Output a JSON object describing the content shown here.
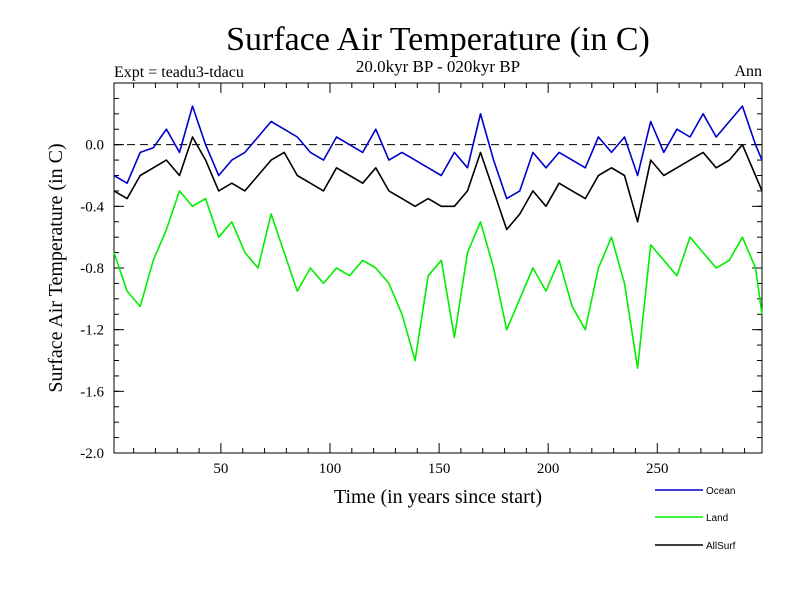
{
  "chart_data": {
    "type": "line",
    "title": "Surface Air Temperature (in C)",
    "subtitle": "20.0kyr BP - 020kyr BP",
    "experiment_label": "Expt = teadu3-tdacu",
    "season_label": "Ann",
    "xlabel": "Time (in years since start)",
    "ylabel": "Surface Air Temperature (in C)",
    "xlim": [
      1,
      298
    ],
    "ylim": [
      -2.0,
      0.4
    ],
    "xticks": [
      50,
      100,
      150,
      200,
      250
    ],
    "xtick_labels": [
      "50",
      "100",
      "150",
      "200",
      "250"
    ],
    "yticks": [
      -2.0,
      -1.6,
      -1.2,
      -0.8,
      -0.4,
      0.0
    ],
    "ytick_labels": [
      "-2.0",
      "-1.6",
      "-1.2",
      "-0.8",
      "-0.4",
      "0.0"
    ],
    "reference_line": 0.0,
    "legend_position": "bottom-right, below plot",
    "x": [
      1,
      7,
      13,
      19,
      25,
      31,
      37,
      43,
      49,
      55,
      61,
      67,
      73,
      79,
      85,
      91,
      97,
      103,
      109,
      115,
      121,
      127,
      133,
      139,
      145,
      151,
      157,
      163,
      169,
      175,
      181,
      187,
      193,
      199,
      205,
      211,
      217,
      223,
      229,
      235,
      241,
      247,
      253,
      259,
      265,
      271,
      277,
      283,
      289,
      295,
      298
    ],
    "series": [
      {
        "name": "Ocean",
        "color": "#0000cc",
        "values": [
          -0.2,
          -0.25,
          -0.05,
          -0.02,
          0.1,
          -0.05,
          0.25,
          0.0,
          -0.2,
          -0.1,
          -0.05,
          0.05,
          0.15,
          0.1,
          0.05,
          -0.05,
          -0.1,
          0.05,
          0.0,
          -0.05,
          0.1,
          -0.1,
          -0.05,
          -0.1,
          -0.15,
          -0.2,
          -0.05,
          -0.15,
          0.2,
          -0.1,
          -0.35,
          -0.3,
          -0.05,
          -0.15,
          -0.05,
          -0.1,
          -0.15,
          0.05,
          -0.05,
          0.05,
          -0.2,
          0.15,
          -0.05,
          0.1,
          0.05,
          0.2,
          0.05,
          0.15,
          0.25,
          0.0,
          -0.1
        ]
      },
      {
        "name": "Land",
        "color": "#00ee00",
        "values": [
          -0.7,
          -0.95,
          -1.05,
          -0.75,
          -0.55,
          -0.3,
          -0.4,
          -0.35,
          -0.6,
          -0.5,
          -0.7,
          -0.8,
          -0.45,
          -0.7,
          -0.95,
          -0.8,
          -0.9,
          -0.8,
          -0.85,
          -0.75,
          -0.8,
          -0.9,
          -1.1,
          -1.4,
          -0.85,
          -0.75,
          -1.25,
          -0.7,
          -0.5,
          -0.8,
          -1.2,
          -1.0,
          -0.8,
          -0.95,
          -0.75,
          -1.05,
          -1.2,
          -0.8,
          -0.6,
          -0.9,
          -1.45,
          -0.65,
          -0.75,
          -0.85,
          -0.6,
          -0.7,
          -0.8,
          -0.75,
          -0.6,
          -0.8,
          -1.1
        ]
      },
      {
        "name": "AllSurf",
        "color": "#000000",
        "values": [
          -0.3,
          -0.35,
          -0.2,
          -0.15,
          -0.1,
          -0.2,
          0.05,
          -0.1,
          -0.3,
          -0.25,
          -0.3,
          -0.2,
          -0.1,
          -0.05,
          -0.2,
          -0.25,
          -0.3,
          -0.15,
          -0.2,
          -0.25,
          -0.15,
          -0.3,
          -0.35,
          -0.4,
          -0.35,
          -0.4,
          -0.4,
          -0.3,
          -0.05,
          -0.3,
          -0.55,
          -0.45,
          -0.3,
          -0.4,
          -0.25,
          -0.3,
          -0.35,
          -0.2,
          -0.15,
          -0.2,
          -0.5,
          -0.1,
          -0.2,
          -0.15,
          -0.1,
          -0.05,
          -0.15,
          -0.1,
          0.0,
          -0.2,
          -0.3
        ]
      }
    ]
  }
}
